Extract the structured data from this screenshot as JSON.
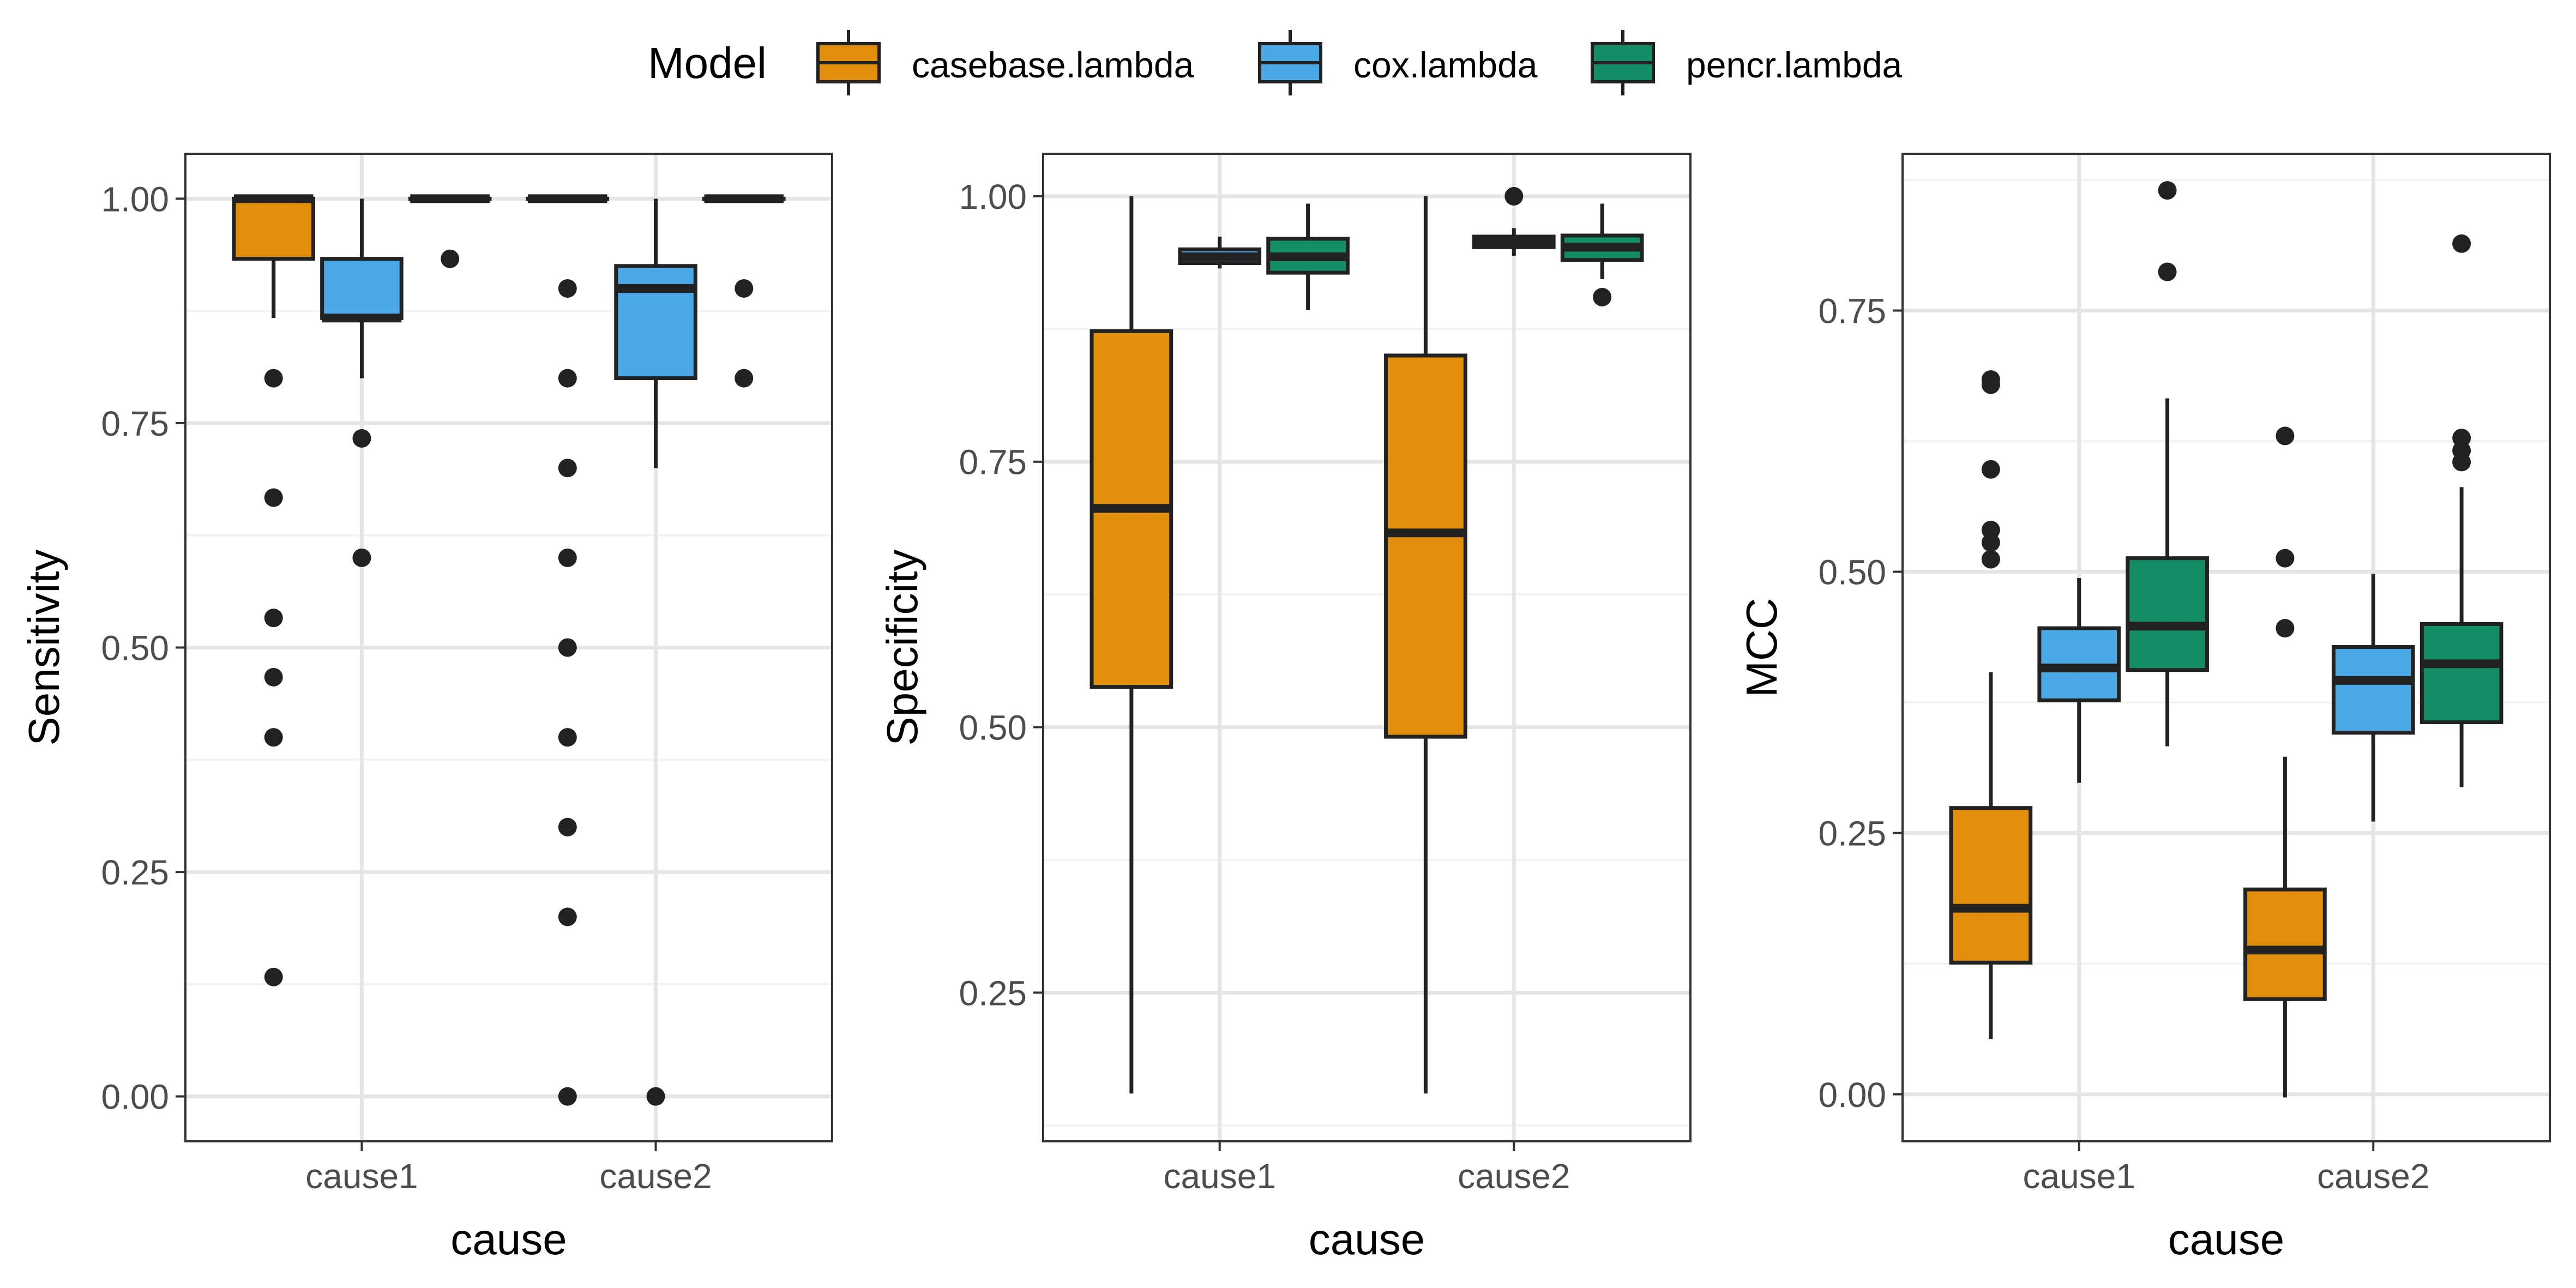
{
  "legend": {
    "title": "Model",
    "entries": [
      {
        "label": "casebase.lambda",
        "color": "#E08E0B"
      },
      {
        "label": "cox.lambda",
        "color": "#4BA8E6"
      },
      {
        "label": "pencr.lambda",
        "color": "#138D65"
      }
    ]
  },
  "colors": {
    "panel_border": "#333333",
    "grid_major": "#E5E5E5",
    "grid_minor": "#F2F2F2",
    "box_line": "#222222",
    "tick_text": "#4D4D4D"
  },
  "chart_data": [
    {
      "type": "box",
      "xlabel": "cause",
      "ylabel": "Sensitivity",
      "categories": [
        "cause1",
        "cause2"
      ],
      "ylim": [
        -0.05,
        1.05
      ],
      "yticks": [
        0.0,
        0.25,
        0.5,
        0.75,
        1.0
      ],
      "ytick_labels": [
        "0.00",
        "0.25",
        "0.50",
        "0.75",
        "1.00"
      ],
      "series": [
        {
          "name": "casebase.lambda",
          "boxes": [
            {
              "category": "cause1",
              "lower": 0.867,
              "q1": 0.933,
              "median": 1.0,
              "q3": 1.0,
              "upper": 1.0,
              "outliers": [
                0.8,
                0.667,
                0.533,
                0.467,
                0.4,
                0.133
              ]
            },
            {
              "category": "cause2",
              "lower": 1.0,
              "q1": 1.0,
              "median": 1.0,
              "q3": 1.0,
              "upper": 1.0,
              "outliers": [
                0.9,
                0.8,
                0.7,
                0.6,
                0.5,
                0.4,
                0.3,
                0.2,
                0.0
              ]
            }
          ]
        },
        {
          "name": "cox.lambda",
          "boxes": [
            {
              "category": "cause1",
              "lower": 0.8,
              "q1": 0.867,
              "median": 0.867,
              "q3": 0.933,
              "upper": 1.0,
              "outliers": [
                0.733,
                0.6
              ]
            },
            {
              "category": "cause2",
              "lower": 0.7,
              "q1": 0.8,
              "median": 0.9,
              "q3": 0.925,
              "upper": 1.0,
              "outliers": [
                0.0
              ]
            }
          ]
        },
        {
          "name": "pencr.lambda",
          "boxes": [
            {
              "category": "cause1",
              "lower": 1.0,
              "q1": 1.0,
              "median": 1.0,
              "q3": 1.0,
              "upper": 1.0,
              "outliers": [
                0.933
              ]
            },
            {
              "category": "cause2",
              "lower": 1.0,
              "q1": 1.0,
              "median": 1.0,
              "q3": 1.0,
              "upper": 1.0,
              "outliers": [
                0.9,
                0.8
              ]
            }
          ]
        }
      ]
    },
    {
      "type": "box",
      "xlabel": "cause",
      "ylabel": "Specificity",
      "categories": [
        "cause1",
        "cause2"
      ],
      "ylim": [
        0.11,
        1.04
      ],
      "yticks": [
        0.25,
        0.5,
        0.75,
        1.0
      ],
      "ytick_labels": [
        "0.25",
        "0.50",
        "0.75",
        "1.00"
      ],
      "series": [
        {
          "name": "casebase.lambda",
          "boxes": [
            {
              "category": "cause1",
              "lower": 0.155,
              "q1": 0.538,
              "median": 0.706,
              "q3": 0.873,
              "upper": 1.0,
              "outliers": []
            },
            {
              "category": "cause2",
              "lower": 0.155,
              "q1": 0.491,
              "median": 0.683,
              "q3": 0.85,
              "upper": 1.0,
              "outliers": []
            }
          ]
        },
        {
          "name": "cox.lambda",
          "boxes": [
            {
              "category": "cause1",
              "lower": 0.932,
              "q1": 0.937,
              "median": 0.943,
              "q3": 0.95,
              "upper": 0.962,
              "outliers": []
            },
            {
              "category": "cause2",
              "lower": 0.944,
              "q1": 0.952,
              "median": 0.957,
              "q3": 0.962,
              "upper": 0.97,
              "outliers": [
                1.0
              ]
            }
          ]
        },
        {
          "name": "pencr.lambda",
          "boxes": [
            {
              "category": "cause1",
              "lower": 0.893,
              "q1": 0.928,
              "median": 0.943,
              "q3": 0.96,
              "upper": 0.993,
              "outliers": []
            },
            {
              "category": "cause2",
              "lower": 0.922,
              "q1": 0.94,
              "median": 0.952,
              "q3": 0.963,
              "upper": 0.993,
              "outliers": [
                0.905
              ]
            }
          ]
        }
      ]
    },
    {
      "type": "box",
      "xlabel": "cause",
      "ylabel": "MCC",
      "categories": [
        "cause1",
        "cause2"
      ],
      "ylim": [
        -0.045,
        0.9
      ],
      "yticks": [
        0.0,
        0.25,
        0.5,
        0.75
      ],
      "ytick_labels": [
        "0.00",
        "0.25",
        "0.50",
        "0.75"
      ],
      "series": [
        {
          "name": "casebase.lambda",
          "boxes": [
            {
              "category": "cause1",
              "lower": 0.053,
              "q1": 0.126,
              "median": 0.178,
              "q3": 0.274,
              "upper": 0.404,
              "outliers": [
                0.684,
                0.679,
                0.598,
                0.54,
                0.528,
                0.512
              ]
            },
            {
              "category": "cause2",
              "lower": -0.003,
              "q1": 0.091,
              "median": 0.138,
              "q3": 0.196,
              "upper": 0.323,
              "outliers": [
                0.63,
                0.513,
                0.446
              ]
            }
          ]
        },
        {
          "name": "cox.lambda",
          "boxes": [
            {
              "category": "cause1",
              "lower": 0.298,
              "q1": 0.377,
              "median": 0.408,
              "q3": 0.446,
              "upper": 0.494,
              "outliers": []
            },
            {
              "category": "cause2",
              "lower": 0.261,
              "q1": 0.346,
              "median": 0.396,
              "q3": 0.428,
              "upper": 0.498,
              "outliers": []
            }
          ]
        },
        {
          "name": "pencr.lambda",
          "boxes": [
            {
              "category": "cause1",
              "lower": 0.333,
              "q1": 0.406,
              "median": 0.448,
              "q3": 0.513,
              "upper": 0.666,
              "outliers": [
                0.865,
                0.787
              ]
            },
            {
              "category": "cause2",
              "lower": 0.294,
              "q1": 0.356,
              "median": 0.412,
              "q3": 0.45,
              "upper": 0.581,
              "outliers": [
                0.814,
                0.628,
                0.616,
                0.605
              ]
            }
          ]
        }
      ]
    }
  ]
}
